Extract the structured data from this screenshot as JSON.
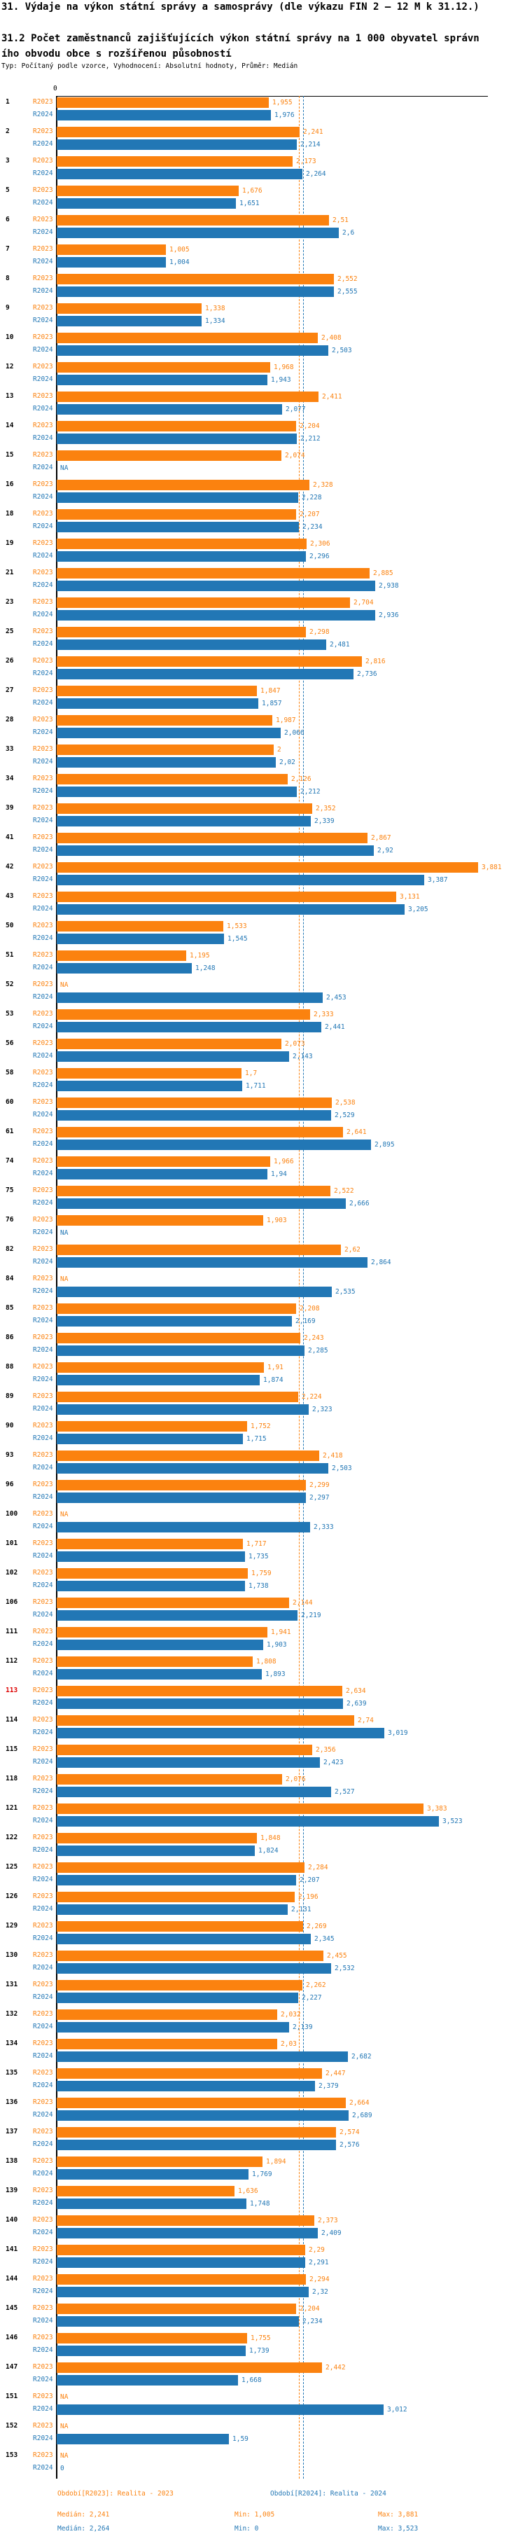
{
  "title": "31. Výdaje na výkon státní správy a samosprávy (dle výkazu FIN 2 – 12 M k 31.12.)",
  "subtitle_line1": "31.2 Počet zaměstnanců zajišťujících výkon státní správy na 1 000 obyvatel správn",
  "subtitle_line2": "ího obvodu obce s rozšířenou působností",
  "meta": "Typ: Počítaný podle vzorce, Vyhodnocení: Absolutní hodnoty, Průměr: Medián",
  "axis": {
    "zero_label": "0"
  },
  "colors": {
    "r2023": "#fb820f",
    "r2024": "#2277b5",
    "highlight": "#dd0000"
  },
  "chart_data": {
    "type": "bar",
    "orientation": "horizontal",
    "title": "31.2 Počet zaměstnanců zajišťujících výkon státní správy na 1 000 obyvatel správního obvodu obce s rozšířenou působností",
    "series_names": [
      "R2023",
      "R2024"
    ],
    "na_label": "NA",
    "highlight_category": "113",
    "xlim": [
      0,
      4
    ],
    "medians": {
      "R2023": 2.241,
      "R2024": 2.264
    },
    "mins": {
      "R2023": 1.005,
      "R2024": 0
    },
    "maxs": {
      "R2023": 3.881,
      "R2024": 3.523
    },
    "rows": [
      [
        "1",
        1.955,
        1.976
      ],
      [
        "2",
        2.241,
        2.214
      ],
      [
        "3",
        2.173,
        2.264
      ],
      [
        "5",
        1.676,
        1.651
      ],
      [
        "6",
        2.51,
        2.6
      ],
      [
        "7",
        1.005,
        1.004
      ],
      [
        "8",
        2.552,
        2.555
      ],
      [
        "9",
        1.338,
        1.334
      ],
      [
        "10",
        2.408,
        2.503
      ],
      [
        "12",
        1.968,
        1.943
      ],
      [
        "13",
        2.411,
        2.077
      ],
      [
        "14",
        2.204,
        2.212
      ],
      [
        "15",
        2.074,
        null
      ],
      [
        "16",
        2.328,
        2.228
      ],
      [
        "18",
        2.207,
        2.234
      ],
      [
        "19",
        2.306,
        2.296
      ],
      [
        "21",
        2.885,
        2.938
      ],
      [
        "23",
        2.704,
        2.936
      ],
      [
        "25",
        2.298,
        2.481
      ],
      [
        "26",
        2.816,
        2.736
      ],
      [
        "27",
        1.847,
        1.857
      ],
      [
        "28",
        1.987,
        2.066
      ],
      [
        "33",
        2,
        2.02
      ],
      [
        "34",
        2.126,
        2.212
      ],
      [
        "39",
        2.352,
        2.339
      ],
      [
        "41",
        2.867,
        2.92
      ],
      [
        "42",
        3.881,
        3.387
      ],
      [
        "43",
        3.131,
        3.205
      ],
      [
        "50",
        1.533,
        1.545
      ],
      [
        "51",
        1.195,
        1.248
      ],
      [
        "52",
        null,
        2.453
      ],
      [
        "53",
        2.333,
        2.441
      ],
      [
        "56",
        2.073,
        2.143
      ],
      [
        "58",
        1.7,
        1.711
      ],
      [
        "60",
        2.538,
        2.529
      ],
      [
        "61",
        2.641,
        2.895
      ],
      [
        "74",
        1.966,
        1.94
      ],
      [
        "75",
        2.522,
        2.666
      ],
      [
        "76",
        1.903,
        null
      ],
      [
        "82",
        2.62,
        2.864
      ],
      [
        "84",
        null,
        2.535
      ],
      [
        "85",
        2.208,
        2.169
      ],
      [
        "86",
        2.243,
        2.285
      ],
      [
        "88",
        1.91,
        1.874
      ],
      [
        "89",
        2.224,
        2.323
      ],
      [
        "90",
        1.752,
        1.715
      ],
      [
        "93",
        2.418,
        2.503
      ],
      [
        "96",
        2.299,
        2.297
      ],
      [
        "100",
        null,
        2.333
      ],
      [
        "101",
        1.717,
        1.735
      ],
      [
        "102",
        1.759,
        1.738
      ],
      [
        "106",
        2.144,
        2.219
      ],
      [
        "111",
        1.941,
        1.903
      ],
      [
        "112",
        1.808,
        1.893
      ],
      [
        "113",
        2.634,
        2.639
      ],
      [
        "114",
        2.74,
        3.019
      ],
      [
        "115",
        2.356,
        2.423
      ],
      [
        "118",
        2.076,
        2.527
      ],
      [
        "121",
        3.383,
        3.523
      ],
      [
        "122",
        1.848,
        1.824
      ],
      [
        "125",
        2.284,
        2.207
      ],
      [
        "126",
        2.196,
        2.131
      ],
      [
        "129",
        2.269,
        2.345
      ],
      [
        "130",
        2.455,
        2.532
      ],
      [
        "131",
        2.262,
        2.227
      ],
      [
        "132",
        2.032,
        2.139
      ],
      [
        "134",
        2.03,
        2.682
      ],
      [
        "135",
        2.447,
        2.379
      ],
      [
        "136",
        2.664,
        2.689
      ],
      [
        "137",
        2.574,
        2.576
      ],
      [
        "138",
        1.894,
        1.769
      ],
      [
        "139",
        1.636,
        1.748
      ],
      [
        "140",
        2.373,
        2.409
      ],
      [
        "141",
        2.29,
        2.291
      ],
      [
        "144",
        2.294,
        2.32
      ],
      [
        "145",
        2.204,
        2.234
      ],
      [
        "146",
        1.755,
        1.739
      ],
      [
        "147",
        2.442,
        1.668
      ],
      [
        "151",
        null,
        3.012
      ],
      [
        "152",
        null,
        1.59
      ],
      [
        "153",
        null,
        0
      ]
    ]
  },
  "footer": {
    "legend_2023": "Období[R2023]: Realita - 2023",
    "legend_2024": "Období[R2024]: Realita - 2024",
    "stats_2023": {
      "median": "Medián: 2,241",
      "min": "Min: 1,005",
      "max": "Max: 3,881"
    },
    "stats_2024": {
      "median": "Medián: 2,264",
      "min": "Min: 0",
      "max": "Max: 3,523"
    }
  }
}
